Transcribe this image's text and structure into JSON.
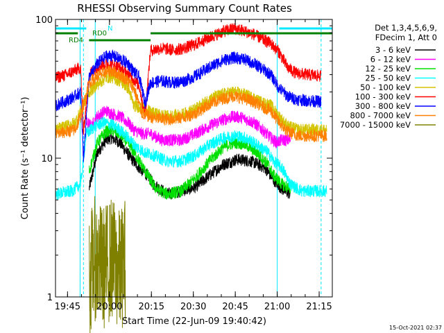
{
  "chart_data": {
    "type": "line",
    "title": "RHESSI Observing Summary Count Rates",
    "xlabel": "Start Time (22-Jun-09 19:40:42)",
    "ylabel": "Count Rate (s⁻¹ detector⁻¹)",
    "y_scale": "log",
    "ylim": [
      1,
      100
    ],
    "xlim_minutes": [
      0,
      99
    ],
    "y_ticks": [
      "1",
      "10",
      "100"
    ],
    "x_ticks": [
      {
        "label": "19:45",
        "minute": 4.3
      },
      {
        "label": "20:00",
        "minute": 19.3
      },
      {
        "label": "20:15",
        "minute": 34.3
      },
      {
        "label": "20:30",
        "minute": 49.3
      },
      {
        "label": "20:45",
        "minute": 64.3
      },
      {
        "label": "21:00",
        "minute": 79.3
      },
      {
        "label": "21:15",
        "minute": 94.3
      }
    ],
    "legend_header": [
      "Det 1,3,4,5,6,9,",
      "FDecim 1, Att 0"
    ],
    "legend_position": "right",
    "series": [
      {
        "name": "3 - 6 keV",
        "color": "#000000",
        "values": [
          [
            0,
            null
          ],
          [
            8,
            null
          ],
          [
            12,
            6
          ],
          [
            15,
            11
          ],
          [
            18,
            13.5
          ],
          [
            20,
            14
          ],
          [
            23,
            13
          ],
          [
            27,
            10
          ],
          [
            30,
            8.5
          ],
          [
            33,
            7.5
          ],
          [
            35,
            6.5
          ],
          [
            40,
            5.5
          ],
          [
            45,
            5.8
          ],
          [
            50,
            6.2
          ],
          [
            55,
            7.5
          ],
          [
            60,
            9
          ],
          [
            65,
            9.8
          ],
          [
            70,
            9.5
          ],
          [
            75,
            8.5
          ],
          [
            78,
            7
          ],
          [
            81,
            6
          ],
          [
            84,
            5.5
          ],
          [
            87,
            null
          ],
          [
            99,
            null
          ]
        ]
      },
      {
        "name": "6 - 12 keV",
        "color": "#ff00ff",
        "values": [
          [
            0,
            null
          ],
          [
            8,
            null
          ],
          [
            11,
            18
          ],
          [
            13,
            17
          ],
          [
            15,
            20
          ],
          [
            18,
            22
          ],
          [
            20,
            21
          ],
          [
            23,
            20
          ],
          [
            26,
            18
          ],
          [
            28,
            16
          ],
          [
            31,
            15
          ],
          [
            34,
            15
          ],
          [
            38,
            13.5
          ],
          [
            45,
            13.5
          ],
          [
            50,
            15
          ],
          [
            55,
            17
          ],
          [
            60,
            19
          ],
          [
            64,
            20
          ],
          [
            67,
            19.5
          ],
          [
            71,
            18
          ],
          [
            74,
            16
          ],
          [
            77,
            14
          ],
          [
            79,
            13
          ],
          [
            81,
            13.5
          ],
          [
            84,
            13.5
          ],
          [
            86,
            null
          ],
          [
            99,
            null
          ]
        ]
      },
      {
        "name": "12 - 25 keV",
        "color": "#00e000",
        "values": [
          [
            0,
            null
          ],
          [
            8,
            null
          ],
          [
            12,
            8
          ],
          [
            15,
            13
          ],
          [
            18,
            15.5
          ],
          [
            20,
            16
          ],
          [
            23,
            15
          ],
          [
            27,
            12
          ],
          [
            30,
            9.5
          ],
          [
            33,
            7.5
          ],
          [
            36,
            6
          ],
          [
            40,
            5.5
          ],
          [
            45,
            5.8
          ],
          [
            50,
            7.2
          ],
          [
            55,
            9.5
          ],
          [
            60,
            12
          ],
          [
            64,
            13
          ],
          [
            68,
            12.5
          ],
          [
            72,
            11
          ],
          [
            76,
            9
          ],
          [
            78,
            7.5
          ],
          [
            81,
            6.5
          ],
          [
            84,
            6
          ],
          [
            86,
            null
          ],
          [
            99,
            null
          ]
        ]
      },
      {
        "name": "25 - 50 keV",
        "color": "#00ffff",
        "values": [
          [
            0,
            5.5
          ],
          [
            6,
            5.8
          ],
          [
            9,
            6.5
          ],
          [
            11,
            15
          ],
          [
            14,
            17
          ],
          [
            17,
            18
          ],
          [
            20,
            17.5
          ],
          [
            23,
            16
          ],
          [
            26,
            14
          ],
          [
            29,
            12
          ],
          [
            32,
            11
          ],
          [
            35,
            10.5
          ],
          [
            40,
            9.5
          ],
          [
            45,
            9.5
          ],
          [
            50,
            10.5
          ],
          [
            55,
            12.5
          ],
          [
            60,
            14
          ],
          [
            64,
            14.5
          ],
          [
            68,
            14
          ],
          [
            72,
            12.5
          ],
          [
            76,
            11
          ],
          [
            78,
            9.5
          ],
          [
            81,
            8.5
          ],
          [
            84,
            6.5
          ],
          [
            88,
            5.8
          ],
          [
            93,
            5.8
          ],
          [
            97,
            5.8
          ],
          [
            99,
            null
          ]
        ]
      },
      {
        "name": "50 - 100 keV",
        "color": "#d4c400",
        "values": [
          [
            0,
            16
          ],
          [
            4,
            17
          ],
          [
            7,
            18
          ],
          [
            9,
            22
          ],
          [
            12,
            30
          ],
          [
            15,
            34
          ],
          [
            18,
            38
          ],
          [
            20,
            38.5
          ],
          [
            23,
            36
          ],
          [
            26,
            32
          ],
          [
            28,
            24
          ],
          [
            31,
            23
          ],
          [
            35,
            21
          ],
          [
            40,
            20
          ],
          [
            45,
            20.5
          ],
          [
            50,
            22.5
          ],
          [
            55,
            26.5
          ],
          [
            60,
            29
          ],
          [
            64,
            30
          ],
          [
            67,
            29
          ],
          [
            71,
            27
          ],
          [
            74,
            25
          ],
          [
            77,
            24
          ],
          [
            80,
            20
          ],
          [
            83,
            17
          ],
          [
            87,
            16
          ],
          [
            92,
            16
          ],
          [
            97,
            16
          ],
          [
            99,
            null
          ]
        ]
      },
      {
        "name": "100 - 300 keV",
        "color": "#ff0000",
        "values": [
          [
            0,
            38
          ],
          [
            4,
            40
          ],
          [
            7,
            43
          ],
          [
            9,
            45
          ],
          [
            10,
            15
          ],
          [
            12,
            40
          ],
          [
            15,
            46
          ],
          [
            18,
            48
          ],
          [
            20,
            47
          ],
          [
            23,
            45
          ],
          [
            26,
            40
          ],
          [
            28,
            37
          ],
          [
            30,
            33
          ],
          [
            32,
            20
          ],
          [
            34,
            60
          ],
          [
            38,
            62
          ],
          [
            42,
            60
          ],
          [
            46,
            62
          ],
          [
            50,
            66
          ],
          [
            55,
            74
          ],
          [
            60,
            82
          ],
          [
            64,
            86
          ],
          [
            67,
            83
          ],
          [
            71,
            78
          ],
          [
            74,
            72
          ],
          [
            77,
            67
          ],
          [
            80,
            58
          ],
          [
            83,
            45
          ],
          [
            86,
            41
          ],
          [
            90,
            40
          ],
          [
            95,
            39
          ],
          [
            99,
            null
          ]
        ]
      },
      {
        "name": "300 - 800 keV",
        "color": "#0000ff",
        "values": [
          [
            0,
            24
          ],
          [
            4,
            26
          ],
          [
            7,
            28
          ],
          [
            9,
            30
          ],
          [
            10,
            10
          ],
          [
            12,
            38
          ],
          [
            15,
            48
          ],
          [
            18,
            54
          ],
          [
            20,
            55
          ],
          [
            23,
            52
          ],
          [
            26,
            48
          ],
          [
            28,
            42
          ],
          [
            30,
            38
          ],
          [
            32,
            25
          ],
          [
            34,
            35
          ],
          [
            38,
            36
          ],
          [
            42,
            35
          ],
          [
            46,
            36
          ],
          [
            50,
            39
          ],
          [
            55,
            45
          ],
          [
            60,
            51
          ],
          [
            64,
            53
          ],
          [
            67,
            52
          ],
          [
            71,
            48
          ],
          [
            74,
            44
          ],
          [
            77,
            40
          ],
          [
            80,
            32
          ],
          [
            83,
            28
          ],
          [
            86,
            26.5
          ],
          [
            90,
            26
          ],
          [
            95,
            25.5
          ],
          [
            99,
            null
          ]
        ]
      },
      {
        "name": "800 - 7000 keV",
        "color": "#ff8000",
        "values": [
          [
            0,
            15
          ],
          [
            4,
            15.5
          ],
          [
            7,
            16
          ],
          [
            9,
            20
          ],
          [
            12,
            35
          ],
          [
            15,
            39
          ],
          [
            18,
            42
          ],
          [
            20,
            42.5
          ],
          [
            23,
            40
          ],
          [
            26,
            36
          ],
          [
            28,
            32
          ],
          [
            31,
            21
          ],
          [
            35,
            19.5
          ],
          [
            40,
            19
          ],
          [
            45,
            19.5
          ],
          [
            50,
            21
          ],
          [
            55,
            24.5
          ],
          [
            60,
            27
          ],
          [
            64,
            28
          ],
          [
            67,
            27
          ],
          [
            71,
            25.5
          ],
          [
            74,
            23.5
          ],
          [
            77,
            22
          ],
          [
            80,
            18
          ],
          [
            83,
            15.5
          ],
          [
            87,
            14.5
          ],
          [
            92,
            14.5
          ],
          [
            97,
            14.5
          ],
          [
            99,
            null
          ]
        ]
      },
      {
        "name": "7000 - 15000 keV",
        "color": "#808000",
        "values": [
          [
            0,
            null
          ],
          [
            10,
            null
          ],
          [
            12,
            1.4
          ],
          [
            14,
            1.9
          ],
          [
            17,
            1.6
          ],
          [
            20,
            1.9
          ],
          [
            23,
            1.5
          ],
          [
            25,
            1.9
          ],
          [
            26,
            null
          ],
          [
            99,
            null
          ]
        ]
      }
    ],
    "flags": [
      {
        "label": "N",
        "color": "#00e8ff",
        "segments": [
          [
            0,
            11
          ],
          [
            80,
            99
          ]
        ]
      },
      {
        "label": "RD0",
        "color": "#008000",
        "segments": [
          [
            0,
            8
          ],
          [
            34,
            99
          ]
        ]
      },
      {
        "label": "RD4",
        "color": "#008000",
        "segments": [
          [
            12,
            34
          ]
        ]
      }
    ],
    "vertical_markers_minutes": [
      8.8,
      10,
      14.2,
      79.3,
      95
    ]
  },
  "timestamp": "15-Oct-2021 02:37"
}
